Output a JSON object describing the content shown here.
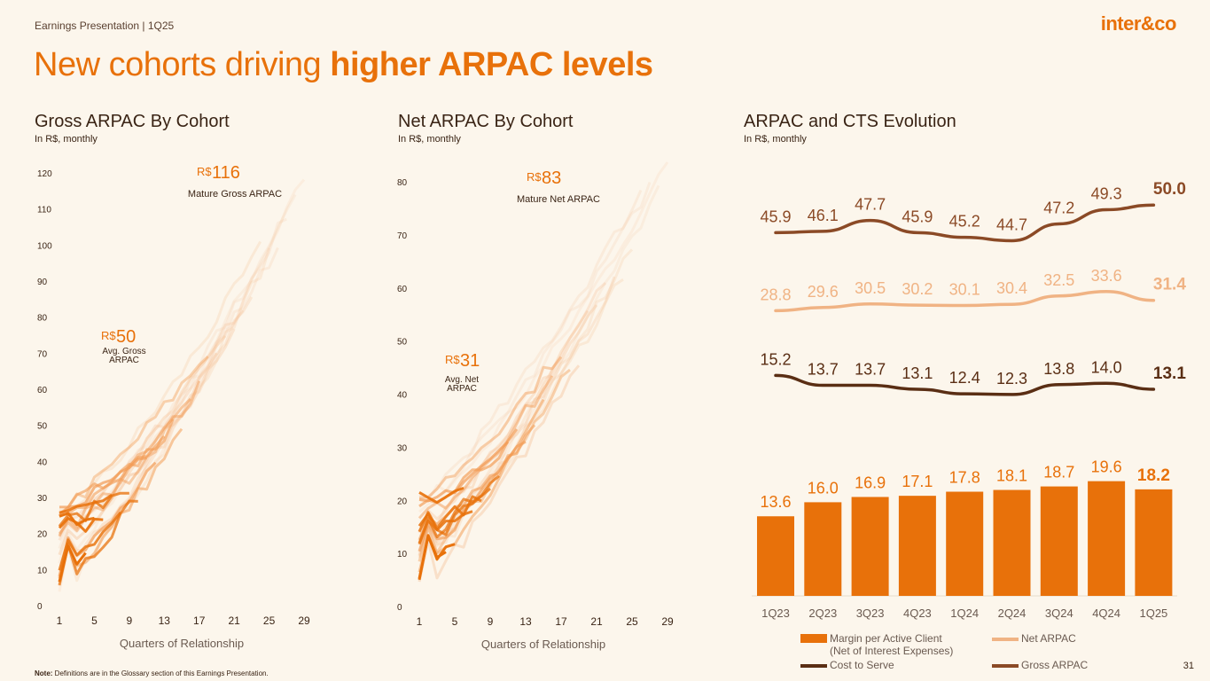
{
  "header": {
    "subtitle": "Earnings Presentation | 1Q25",
    "logo": "inter&co"
  },
  "title": {
    "regular": "New cohorts driving ",
    "bold": "higher ARPAC levels"
  },
  "sections": {
    "gross": {
      "title": "Gross ARPAC By Cohort",
      "subtitle": "In R$, monthly"
    },
    "net": {
      "title": "Net ARPAC By Cohort",
      "subtitle": "In R$, monthly"
    },
    "evo": {
      "title": "ARPAC and CTS Evolution",
      "subtitle": "In R$, monthly"
    }
  },
  "colors": {
    "accent": "#e8710a",
    "dark": "#5a2e14",
    "gross": "#8b4a26",
    "net": "#f0b384",
    "bg": "#fcf6ec"
  },
  "chart_data": [
    {
      "type": "line",
      "title": "Gross ARPAC By Cohort",
      "xlabel": "Quarters of Relationship",
      "x_ticks": [
        "1",
        "5",
        "9",
        "13",
        "17",
        "21",
        "25",
        "29"
      ],
      "y_ticks": [
        "0",
        "10",
        "20",
        "30",
        "40",
        "50",
        "60",
        "70",
        "80",
        "90",
        "100",
        "110",
        "120"
      ],
      "ylim": [
        0,
        120
      ],
      "xlim": [
        1,
        29
      ],
      "series_shape": {
        "start_min": 5,
        "start_max": 28,
        "mature_end": 116,
        "cohorts": 26
      },
      "annotations": [
        {
          "currency": "R$",
          "value": "116",
          "label": "Mature Gross ARPAC"
        },
        {
          "currency": "R$",
          "value": "50",
          "label": "Avg. Gross ARPAC"
        }
      ]
    },
    {
      "type": "line",
      "title": "Net ARPAC By Cohort",
      "xlabel": "Quarters of Relationship",
      "x_ticks": [
        "1",
        "5",
        "9",
        "13",
        "17",
        "21",
        "25",
        "29"
      ],
      "y_ticks": [
        "0",
        "10",
        "20",
        "30",
        "40",
        "50",
        "60",
        "70",
        "80"
      ],
      "ylim": [
        0,
        80
      ],
      "xlim": [
        1,
        29
      ],
      "series_shape": {
        "start_min": 4,
        "start_max": 21,
        "mature_end": 83,
        "cohorts": 26
      },
      "annotations": [
        {
          "currency": "R$",
          "value": "83",
          "label": "Mature Net ARPAC"
        },
        {
          "currency": "R$",
          "value": "31",
          "label": "Avg. Net ARPAC"
        }
      ]
    },
    {
      "type": "bar",
      "title": "ARPAC and CTS Evolution",
      "categories": [
        "1Q23",
        "2Q23",
        "3Q23",
        "4Q23",
        "1Q24",
        "2Q24",
        "3Q24",
        "4Q24",
        "1Q25"
      ],
      "series": [
        {
          "name": "Margin per Active Client (Net of Interest Expenses)",
          "kind": "bar",
          "values": [
            13.6,
            16.0,
            16.9,
            17.1,
            17.8,
            18.1,
            18.7,
            19.6,
            18.2
          ],
          "labels": [
            "13.6",
            "16.0",
            "16.9",
            "17.1",
            "17.8",
            "18.1",
            "18.7",
            "19.6",
            "18.2"
          ]
        },
        {
          "name": "Net ARPAC",
          "kind": "line",
          "values": [
            28.8,
            29.6,
            30.5,
            30.2,
            30.1,
            30.4,
            32.5,
            33.6,
            31.4
          ],
          "labels": [
            "28.8",
            "29.6",
            "30.5",
            "30.2",
            "30.1",
            "30.4",
            "32.5",
            "33.6",
            "31.4"
          ]
        },
        {
          "name": "Cost to Serve",
          "kind": "line",
          "values": [
            15.2,
            13.7,
            13.7,
            13.1,
            12.4,
            12.3,
            13.8,
            14.0,
            13.1
          ],
          "labels": [
            "15.2",
            "13.7",
            "13.7",
            "13.1",
            "12.4",
            "12.3",
            "13.8",
            "14.0",
            "13.1"
          ]
        },
        {
          "name": "Gross ARPAC",
          "kind": "line",
          "values": [
            45.9,
            46.1,
            47.7,
            45.9,
            45.2,
            44.7,
            47.2,
            49.3,
            50.0
          ],
          "labels": [
            "45.9",
            "46.1",
            "47.7",
            "45.9",
            "45.2",
            "44.7",
            "47.2",
            "49.3",
            "50.0"
          ]
        }
      ],
      "legend": [
        "Margin per Active Client (Net of Interest Expenses)",
        "Net ARPAC",
        "Cost to Serve",
        "Gross ARPAC"
      ],
      "legend_line1": "Margin per Active Client",
      "legend_line2": "(Net of Interest Expenses)"
    }
  ],
  "footer": {
    "note_label": "Note:",
    "note": " Definitions are in the Glossary section of this Earnings Presentation.",
    "page": "31"
  }
}
